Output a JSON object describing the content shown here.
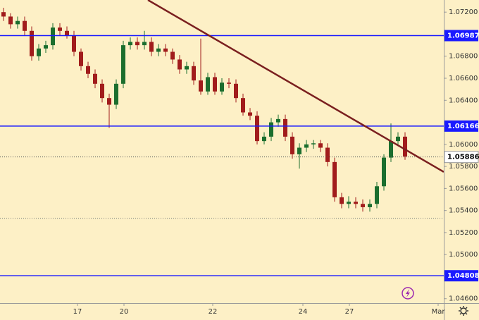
{
  "chart_data": {
    "type": "candlestick",
    "open": [
      1.072,
      1.0716,
      1.0709,
      1.0712,
      1.0703,
      1.068,
      1.0687,
      1.069,
      1.0706,
      1.0703,
      1.0699,
      1.0684,
      1.0671,
      1.0664,
      1.0655,
      1.0642,
      1.0636,
      1.0655,
      1.069,
      1.0693,
      1.069,
      1.0693,
      1.0684,
      1.0687,
      1.0684,
      1.0677,
      1.0668,
      1.0671,
      1.0658,
      1.0648,
      1.0661,
      1.0648,
      1.0656,
      1.0655,
      1.0642,
      1.0629,
      1.0626,
      1.0603,
      1.0607,
      1.062,
      1.0623,
      1.0607,
      1.0591,
      1.0597,
      1.06,
      1.0601,
      1.0597,
      1.0584,
      1.0552,
      1.0546,
      1.0548,
      1.0546,
      1.0543,
      1.0546,
      1.0562,
      1.0588,
      1.0603,
      1.0607
    ],
    "high": [
      1.0724,
      1.0719,
      1.0716,
      1.0716,
      1.0707,
      1.0691,
      1.0694,
      1.071,
      1.071,
      1.0707,
      1.0703,
      1.0687,
      1.0675,
      1.0668,
      1.0659,
      1.0646,
      1.0659,
      1.0694,
      1.0697,
      1.0697,
      1.0703,
      1.0697,
      1.0691,
      1.0691,
      1.0687,
      1.0681,
      1.0675,
      1.0675,
      1.0696,
      1.0665,
      1.0665,
      1.066,
      1.066,
      1.0659,
      1.0646,
      1.0633,
      1.063,
      1.0611,
      1.0624,
      1.0627,
      1.0627,
      1.0611,
      1.0601,
      1.0604,
      1.0604,
      1.0604,
      1.0601,
      1.0588,
      1.0556,
      1.0553,
      1.0552,
      1.055,
      1.055,
      1.0566,
      1.0591,
      1.0619,
      1.0611,
      1.0611
    ],
    "low": [
      1.0712,
      1.0705,
      1.0705,
      1.0699,
      1.0676,
      1.0676,
      1.0683,
      1.0686,
      1.0699,
      1.0696,
      1.068,
      1.0667,
      1.066,
      1.0651,
      1.0638,
      1.0615,
      1.0632,
      1.0651,
      1.0686,
      1.0686,
      1.0686,
      1.068,
      1.068,
      1.068,
      1.0673,
      1.0664,
      1.0664,
      1.0654,
      1.0645,
      1.0645,
      1.0645,
      1.0645,
      1.0651,
      1.0638,
      1.0626,
      1.0622,
      1.06,
      1.06,
      1.0603,
      1.0616,
      1.0603,
      1.0587,
      1.0578,
      1.0593,
      1.0596,
      1.0593,
      1.058,
      1.0548,
      1.0542,
      1.0542,
      1.0542,
      1.0539,
      1.0539,
      1.0542,
      1.0558,
      1.0584,
      1.06,
      1.0586
    ],
    "close": [
      1.0716,
      1.0709,
      1.0712,
      1.0703,
      1.068,
      1.0687,
      1.069,
      1.0706,
      1.0703,
      1.0699,
      1.0684,
      1.0671,
      1.0664,
      1.0655,
      1.0642,
      1.0636,
      1.0655,
      1.069,
      1.0693,
      1.069,
      1.0693,
      1.0684,
      1.0687,
      1.0684,
      1.0677,
      1.0668,
      1.0671,
      1.0658,
      1.0648,
      1.0661,
      1.0648,
      1.0656,
      1.0655,
      1.0642,
      1.0629,
      1.0626,
      1.0603,
      1.0607,
      1.062,
      1.0623,
      1.0607,
      1.0591,
      1.0597,
      1.06,
      1.0601,
      1.0597,
      1.0584,
      1.0552,
      1.0546,
      1.0548,
      1.0546,
      1.0543,
      1.0546,
      1.0562,
      1.0588,
      1.0603,
      1.0607,
      1.0589
    ],
    "up_color": "#1b6e2e",
    "down_color": "#a11c1c",
    "ylim": [
      1.0456,
      1.0731
    ],
    "yticks": [
      {
        "value": 1.072,
        "label": "1.07200"
      },
      {
        "value": 1.068,
        "label": "1.06800"
      },
      {
        "value": 1.066,
        "label": "1.06600"
      },
      {
        "value": 1.064,
        "label": "1.06400"
      },
      {
        "value": 1.06,
        "label": "1.06000"
      },
      {
        "value": 1.058,
        "label": "1.05800"
      },
      {
        "value": 1.056,
        "label": "1.05600"
      },
      {
        "value": 1.054,
        "label": "1.05400"
      },
      {
        "value": 1.052,
        "label": "1.05200"
      },
      {
        "value": 1.05,
        "label": "1.05000"
      },
      {
        "value": 1.046,
        "label": "1.04600"
      }
    ],
    "xticks": [
      {
        "value": 10.5,
        "label": "17"
      },
      {
        "value": 17.1,
        "label": "20"
      },
      {
        "value": 29.7,
        "label": "22"
      },
      {
        "value": 42.5,
        "label": "24"
      },
      {
        "value": 49.1,
        "label": "27"
      },
      {
        "value": 61.7,
        "label": "Mar"
      }
    ],
    "levels": [
      {
        "value": 1.06987,
        "label": "1.06987",
        "color": "#1a1aff",
        "line_style": "solid"
      },
      {
        "value": 1.06166,
        "label": "1.06166",
        "color": "#1a1aff",
        "line_style": "solid"
      },
      {
        "value": 1.04808,
        "label": "1.04808",
        "color": "#1a1aff",
        "line_style": "solid"
      },
      {
        "value": 1.05886,
        "label": "1.05886",
        "color": "#555555",
        "line_style": "dotted"
      },
      {
        "value": 1.0533,
        "color": "#777777",
        "line_style": "dotted"
      }
    ],
    "trendline": {
      "x": [
        20.5,
        62.5
      ],
      "y": [
        1.0731,
        1.0575
      ],
      "color": "#7a1f1f"
    }
  }
}
